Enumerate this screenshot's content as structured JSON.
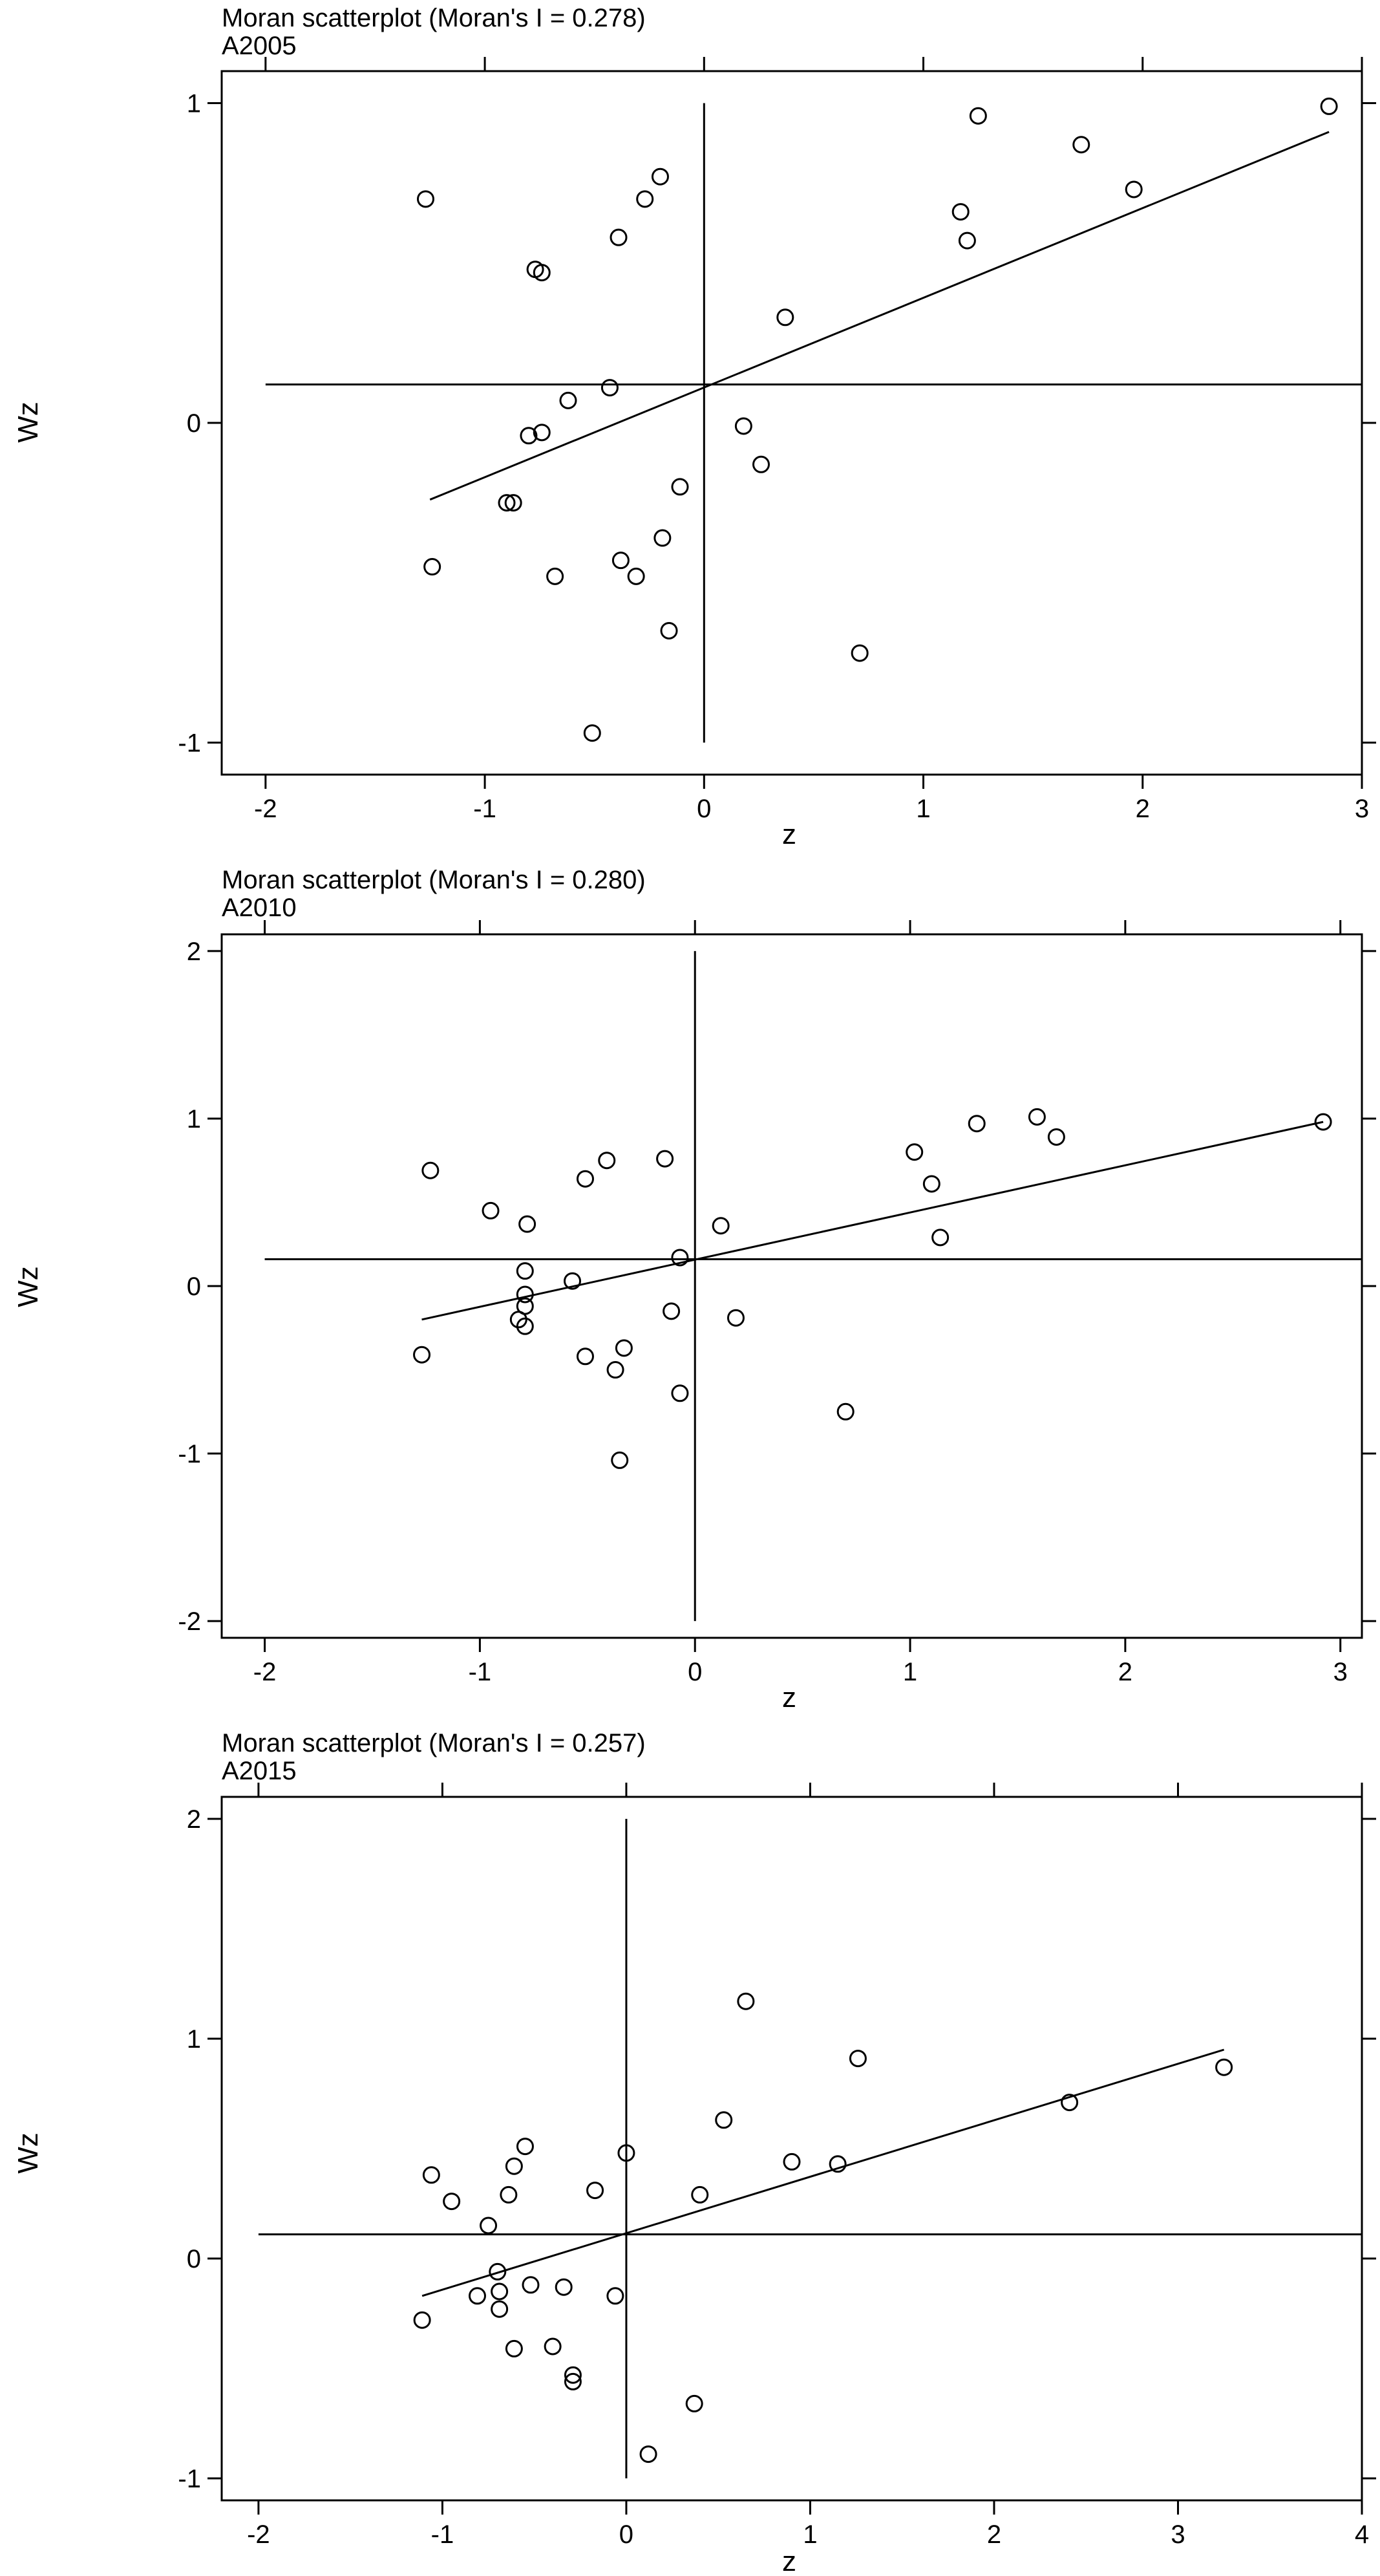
{
  "chart_data": [
    {
      "type": "scatter",
      "title": "Moran scatterplot (Moran's I = 0.278)",
      "subtitle": "A2005",
      "xlabel": "z",
      "ylabel": "Wz",
      "xlim": [
        -2.2,
        3.0
      ],
      "ylim": [
        -1.1,
        1.1
      ],
      "xticks": [
        -2,
        -1,
        0,
        1,
        2,
        3
      ],
      "xtick_labels": [
        "-2",
        "-1",
        "0",
        "1",
        "2",
        "3"
      ],
      "yticks": [
        -1,
        0,
        1
      ],
      "ytick_labels": [
        "-1",
        "0",
        "1"
      ],
      "mean_x": 0.0,
      "mean_y": 0.12,
      "grid": false,
      "fit_line": {
        "x": [
          -1.25,
          2.85
        ],
        "y": [
          -0.24,
          0.91
        ]
      },
      "points": [
        {
          "x": -1.27,
          "y": 0.7
        },
        {
          "x": -1.24,
          "y": -0.45
        },
        {
          "x": -0.77,
          "y": 0.48
        },
        {
          "x": -0.74,
          "y": 0.47
        },
        {
          "x": -0.39,
          "y": 0.58
        },
        {
          "x": -0.27,
          "y": 0.7
        },
        {
          "x": -0.2,
          "y": 0.77
        },
        {
          "x": -0.62,
          "y": 0.07
        },
        {
          "x": -0.43,
          "y": 0.11
        },
        {
          "x": -0.8,
          "y": -0.04
        },
        {
          "x": -0.74,
          "y": -0.03
        },
        {
          "x": -0.9,
          "y": -0.25
        },
        {
          "x": -0.87,
          "y": -0.25
        },
        {
          "x": -0.68,
          "y": -0.48
        },
        {
          "x": -0.38,
          "y": -0.43
        },
        {
          "x": -0.31,
          "y": -0.48
        },
        {
          "x": -0.19,
          "y": -0.36
        },
        {
          "x": -0.11,
          "y": -0.2
        },
        {
          "x": -0.16,
          "y": -0.65
        },
        {
          "x": -0.51,
          "y": -0.97
        },
        {
          "x": 0.18,
          "y": -0.01
        },
        {
          "x": 0.26,
          "y": -0.13
        },
        {
          "x": 0.37,
          "y": 0.33
        },
        {
          "x": 0.71,
          "y": -0.72
        },
        {
          "x": 1.17,
          "y": 0.66
        },
        {
          "x": 1.2,
          "y": 0.57
        },
        {
          "x": 1.25,
          "y": 0.96
        },
        {
          "x": 1.72,
          "y": 0.87
        },
        {
          "x": 1.96,
          "y": 0.73
        },
        {
          "x": 2.85,
          "y": 0.99
        }
      ]
    },
    {
      "type": "scatter",
      "title": "Moran scatterplot (Moran's I = 0.280)",
      "subtitle": "A2010",
      "xlabel": "z",
      "ylabel": "Wz",
      "xlim": [
        -2.2,
        3.1
      ],
      "ylim": [
        -2.1,
        2.1
      ],
      "xticks": [
        -2,
        -1,
        0,
        1,
        2,
        3
      ],
      "xtick_labels": [
        "-2",
        "-1",
        "0",
        "1",
        "2",
        "3"
      ],
      "yticks": [
        -2,
        -1,
        0,
        1,
        2
      ],
      "ytick_labels": [
        "-2",
        "-1",
        "0",
        "1",
        "2"
      ],
      "mean_x": 0.0,
      "mean_y": 0.16,
      "grid": false,
      "fit_line": {
        "x": [
          -1.27,
          2.92
        ],
        "y": [
          -0.2,
          0.98
        ]
      },
      "points": [
        {
          "x": -1.23,
          "y": 0.69
        },
        {
          "x": -1.27,
          "y": -0.41
        },
        {
          "x": -0.95,
          "y": 0.45
        },
        {
          "x": -0.78,
          "y": 0.37
        },
        {
          "x": -0.79,
          "y": 0.09
        },
        {
          "x": -0.79,
          "y": -0.05
        },
        {
          "x": -0.79,
          "y": -0.12
        },
        {
          "x": -0.82,
          "y": -0.2
        },
        {
          "x": -0.79,
          "y": -0.24
        },
        {
          "x": -0.57,
          "y": 0.03
        },
        {
          "x": -0.51,
          "y": 0.64
        },
        {
          "x": -0.41,
          "y": 0.75
        },
        {
          "x": -0.51,
          "y": -0.42
        },
        {
          "x": -0.37,
          "y": -0.5
        },
        {
          "x": -0.33,
          "y": -0.37
        },
        {
          "x": -0.35,
          "y": -1.04
        },
        {
          "x": -0.14,
          "y": 0.76
        },
        {
          "x": -0.11,
          "y": -0.15
        },
        {
          "x": -0.07,
          "y": 0.17
        },
        {
          "x": -0.07,
          "y": -0.64
        },
        {
          "x": 0.12,
          "y": 0.36
        },
        {
          "x": 0.19,
          "y": -0.19
        },
        {
          "x": 0.7,
          "y": -0.75
        },
        {
          "x": 1.02,
          "y": 0.8
        },
        {
          "x": 1.1,
          "y": 0.61
        },
        {
          "x": 1.14,
          "y": 0.29
        },
        {
          "x": 1.31,
          "y": 0.97
        },
        {
          "x": 1.59,
          "y": 1.01
        },
        {
          "x": 1.68,
          "y": 0.89
        },
        {
          "x": 2.92,
          "y": 0.98
        }
      ]
    },
    {
      "type": "scatter",
      "title": "Moran scatterplot (Moran's I = 0.257)",
      "subtitle": "A2015",
      "xlabel": "z",
      "ylabel": "Wz",
      "xlim": [
        -2.2,
        4.0
      ],
      "ylim": [
        -1.1,
        2.1
      ],
      "xticks": [
        -2,
        -1,
        0,
        1,
        2,
        3,
        4
      ],
      "xtick_labels": [
        "-2",
        "-1",
        "0",
        "1",
        "2",
        "3",
        "4"
      ],
      "yticks": [
        -1,
        0,
        1,
        2
      ],
      "ytick_labels": [
        "-1",
        "0",
        "1",
        "2"
      ],
      "mean_x": 0.0,
      "mean_y": 0.11,
      "grid": false,
      "fit_line": {
        "x": [
          -1.11,
          3.25
        ],
        "y": [
          -0.17,
          0.95
        ]
      },
      "points": [
        {
          "x": -1.11,
          "y": -0.28
        },
        {
          "x": -1.06,
          "y": 0.38
        },
        {
          "x": -0.95,
          "y": 0.26
        },
        {
          "x": -0.81,
          "y": -0.17
        },
        {
          "x": -0.75,
          "y": 0.15
        },
        {
          "x": -0.7,
          "y": -0.06
        },
        {
          "x": -0.69,
          "y": -0.15
        },
        {
          "x": -0.69,
          "y": -0.23
        },
        {
          "x": -0.64,
          "y": 0.29
        },
        {
          "x": -0.61,
          "y": 0.42
        },
        {
          "x": -0.61,
          "y": -0.41
        },
        {
          "x": -0.55,
          "y": 0.51
        },
        {
          "x": -0.52,
          "y": -0.12
        },
        {
          "x": -0.4,
          "y": -0.4
        },
        {
          "x": -0.34,
          "y": -0.13
        },
        {
          "x": -0.29,
          "y": -0.53
        },
        {
          "x": -0.29,
          "y": -0.56
        },
        {
          "x": -0.17,
          "y": 0.31
        },
        {
          "x": -0.06,
          "y": -0.17
        },
        {
          "x": 0.0,
          "y": 0.48
        },
        {
          "x": 0.12,
          "y": -0.89
        },
        {
          "x": 0.37,
          "y": -0.66
        },
        {
          "x": 0.4,
          "y": 0.29
        },
        {
          "x": 0.53,
          "y": 0.63
        },
        {
          "x": 0.65,
          "y": 1.17
        },
        {
          "x": 0.9,
          "y": 0.44
        },
        {
          "x": 1.15,
          "y": 0.43
        },
        {
          "x": 1.26,
          "y": 0.91
        },
        {
          "x": 2.41,
          "y": 0.71
        },
        {
          "x": 3.25,
          "y": 0.87
        }
      ]
    }
  ]
}
